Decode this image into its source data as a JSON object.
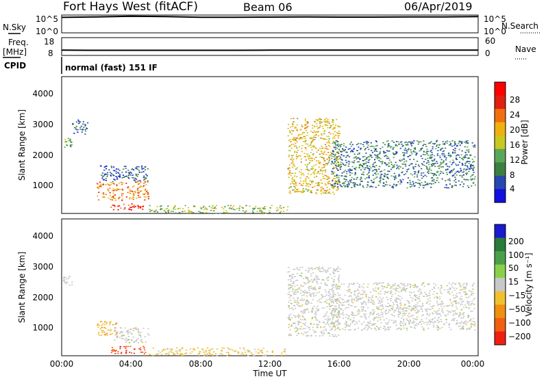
{
  "header": {
    "station": "Fort Hays West (fitACF)",
    "beam": "Beam 06",
    "date": "06/Apr/2019"
  },
  "top_panels": {
    "nsky_label": "N.Sky",
    "nsky_ticks": [
      "10^5",
      "10^0"
    ],
    "nsearch_label": "N.Search",
    "nsearch_ticks": [
      "10^5",
      "10^0"
    ],
    "freq_label": "Freq.",
    "freq_unit": "[MHz]",
    "freq_ticks": [
      "18",
      "8"
    ],
    "nave_label": "Nave",
    "nave_ticks": [
      "60",
      "0"
    ],
    "cpid_label": "CPID",
    "cpid_text": "normal (fast) 151 IF"
  },
  "axes": {
    "xlabel": "Time UT",
    "x_ticks": [
      "00:00",
      "04:00",
      "08:00",
      "12:00",
      "16:00",
      "20:00",
      "00:00"
    ],
    "ylabel": "Slant Range [km]",
    "y_ticks": [
      "1000",
      "2000",
      "3000",
      "4000"
    ]
  },
  "colorbars": {
    "power": {
      "label": "Power [dB]",
      "ticks": [
        "4",
        "8",
        "12",
        "16",
        "20",
        "24",
        "28"
      ],
      "colors": [
        "#1010e0",
        "#2848b0",
        "#3c8040",
        "#58a858",
        "#c8c820",
        "#f0b010",
        "#f07010",
        "#e02010",
        "#ff0000"
      ]
    },
    "velocity": {
      "label": "Velocity [m s⁻¹]",
      "ticks": [
        "200",
        "100",
        "50",
        "15",
        "−15",
        "−50",
        "−100",
        "−200"
      ],
      "colors": [
        "#1a1ad0",
        "#2a7a3a",
        "#4aa04a",
        "#8ad04a",
        "#c8c8c8",
        "#f0c030",
        "#f09010",
        "#f06010",
        "#f02010"
      ]
    }
  },
  "chart_data": [
    {
      "type": "line",
      "title": "N.Sky / N.Search",
      "x": [
        0,
        2,
        4,
        6,
        8,
        10,
        12,
        14,
        16,
        18,
        20,
        22,
        24
      ],
      "series": [
        {
          "values": [
            80000,
            120000,
            200000,
            150000,
            90000,
            90000,
            100000,
            110000,
            100000,
            100000,
            110000,
            120000,
            150000
          ]
        }
      ],
      "yscale": "log",
      "ylim": [
        1,
        100000
      ],
      "ylabel": "N.Sky"
    },
    {
      "type": "line",
      "title": "Freq / Nave",
      "x": [
        0,
        2,
        4,
        6,
        8,
        10,
        12,
        14,
        16,
        18,
        20,
        22,
        24
      ],
      "series": [
        {
          "values": [
            10.6,
            10.5,
            10.5,
            10.5,
            10.5,
            10.5,
            10.6,
            10.6,
            10.6,
            10.6,
            10.6,
            10.6,
            10.6
          ]
        }
      ],
      "ylim": [
        8,
        18
      ],
      "ylabel": "Freq. [MHz]"
    },
    {
      "type": "heatmap",
      "title": "Power",
      "xlabel": "Time UT",
      "ylabel": "Slant Range [km]",
      "xlim": [
        0,
        24
      ],
      "ylim": [
        180,
        4500
      ],
      "colorbar": "Power [dB]",
      "clim": [
        0,
        32
      ],
      "regions": [
        {
          "t": [
            0.05,
            0.55
          ],
          "r": [
            2250,
            2600
          ],
          "value": 12
        },
        {
          "t": [
            0.6,
            1.5
          ],
          "r": [
            2700,
            3150
          ],
          "value": 6
        },
        {
          "t": [
            2.0,
            5.0
          ],
          "r": [
            600,
            1200
          ],
          "value": 22
        },
        {
          "t": [
            2.2,
            5.0
          ],
          "r": [
            1200,
            1700
          ],
          "value": 6
        },
        {
          "t": [
            2.8,
            4.8
          ],
          "r": [
            300,
            500
          ],
          "value": 28
        },
        {
          "t": [
            5.0,
            13.0
          ],
          "r": [
            200,
            450
          ],
          "value": 14
        },
        {
          "t": [
            13.0,
            16.0
          ],
          "r": [
            800,
            3200
          ],
          "value": 18
        },
        {
          "t": [
            15.5,
            23.8
          ],
          "r": [
            1000,
            2500
          ],
          "value": 8
        }
      ]
    },
    {
      "type": "heatmap",
      "title": "Velocity",
      "xlabel": "Time UT",
      "ylabel": "Slant Range [km]",
      "xlim": [
        0,
        24
      ],
      "ylim": [
        180,
        4500
      ],
      "colorbar": "Velocity [m s⁻¹]",
      "clim": [
        -200,
        200
      ],
      "regions": [
        {
          "t": [
            0.05,
            0.6
          ],
          "r": [
            2300,
            2700
          ],
          "value": 0
        },
        {
          "t": [
            2.0,
            3.2
          ],
          "r": [
            800,
            1300
          ],
          "value": -60
        },
        {
          "t": [
            3.0,
            5.0
          ],
          "r": [
            600,
            1100
          ],
          "value": 0
        },
        {
          "t": [
            2.8,
            4.8
          ],
          "r": [
            250,
            500
          ],
          "value": -150
        },
        {
          "t": [
            5.0,
            13.0
          ],
          "r": [
            200,
            450
          ],
          "value": -30
        },
        {
          "t": [
            13.0,
            16.0
          ],
          "r": [
            800,
            3000
          ],
          "value": 0
        },
        {
          "t": [
            15.5,
            23.8
          ],
          "r": [
            1000,
            2500
          ],
          "value": 0
        }
      ]
    }
  ]
}
